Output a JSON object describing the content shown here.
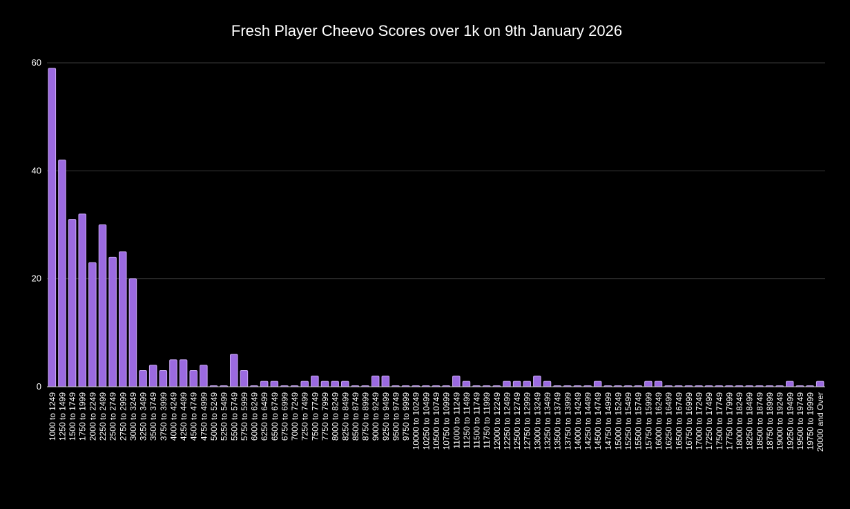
{
  "chart_data": {
    "type": "bar",
    "title": "Fresh Player Cheevo Scores over 1k on 9th January 2026",
    "xlabel": "",
    "ylabel": "",
    "ylim": [
      0,
      60
    ],
    "yticks": [
      0,
      20,
      40,
      60
    ],
    "grid": true,
    "legend": "none",
    "colors": {
      "background": "#000000",
      "bar_fill": "#9b6ae0",
      "bar_stroke": "#c9a8f5",
      "gridline": "#3a3a3a",
      "axis": "#cccccc",
      "text": "#ffffff"
    },
    "categories": [
      "1000 to 1249",
      "1250 to 1499",
      "1500 to 1749",
      "1750 to 1999",
      "2000 to 2249",
      "2250 to 2499",
      "2500 to 2749",
      "2750 to 2999",
      "3000 to 3249",
      "3250 to 3499",
      "3500 to 3749",
      "3750 to 3999",
      "4000 to 4249",
      "4250 to 4499",
      "4500 to 4749",
      "4750 to 4999",
      "5000 to 5249",
      "5250 to 5499",
      "5500 to 5749",
      "5750 to 5999",
      "6000 to 6249",
      "6250 to 6499",
      "6500 to 6749",
      "6750 to 6999",
      "7000 to 7249",
      "7250 to 7499",
      "7500 to 7749",
      "7750 to 7999",
      "8000 to 8249",
      "8250 to 8499",
      "8500 to 8749",
      "8750 to 8999",
      "9000 to 9249",
      "9250 to 9499",
      "9500 to 9749",
      "9750 to 9999",
      "10000 to 10249",
      "10250 to 10499",
      "10500 to 10749",
      "10750 to 10999",
      "11000 to 11249",
      "11250 to 11499",
      "11500 to 11749",
      "11750 to 11999",
      "12000 to 12249",
      "12250 to 12499",
      "12500 to 12749",
      "12750 to 12999",
      "13000 to 13249",
      "13250 to 13499",
      "13500 to 13749",
      "13750 to 13999",
      "14000 to 14249",
      "14250 to 14499",
      "14500 to 14749",
      "14750 to 14999",
      "15000 to 15249",
      "15250 to 15499",
      "15500 to 15749",
      "15750 to 15999",
      "16000 to 16249",
      "16250 to 16499",
      "16500 to 16749",
      "16750 to 16999",
      "17000 to 17249",
      "17250 to 17499",
      "17500 to 17749",
      "17750 to 17999",
      "18000 to 18249",
      "18250 to 18499",
      "18500 to 18749",
      "18750 to 18999",
      "19000 to 19249",
      "19250 to 19499",
      "19500 to 19749",
      "19750 to 19999",
      "20000 and Over"
    ],
    "values": [
      59,
      42,
      31,
      32,
      23,
      30,
      24,
      25,
      20,
      3,
      4,
      3,
      5,
      5,
      3,
      4,
      0,
      0,
      6,
      3,
      0,
      1,
      1,
      0,
      0,
      1,
      2,
      1,
      1,
      1,
      0,
      0,
      2,
      2,
      0,
      0,
      0,
      0,
      0,
      0,
      2,
      1,
      0,
      0,
      0,
      1,
      1,
      1,
      2,
      1,
      0,
      0,
      0,
      0,
      1,
      0,
      0,
      0,
      0,
      1,
      1,
      0,
      0,
      0,
      0,
      0,
      0,
      0,
      0,
      0,
      0,
      0,
      0,
      1,
      0,
      0,
      1
    ]
  }
}
